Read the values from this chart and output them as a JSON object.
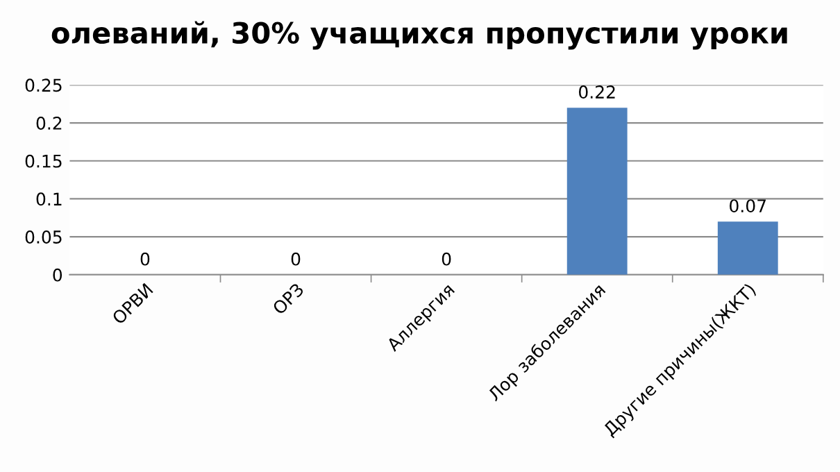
{
  "chart_data": {
    "type": "bar",
    "title": "олеваний, 30% учащихся пропустили уроки",
    "categories": [
      "ОРВИ",
      "ОРЗ",
      "Аллергия",
      "Лор заболевания",
      "Другие причины(ЖКТ)"
    ],
    "values": [
      0,
      0,
      0,
      0.22,
      0.07
    ],
    "color": "#4f81bd",
    "ylim": [
      0,
      0.25
    ],
    "yticks": [
      0,
      0.05,
      0.1,
      0.15,
      0.2,
      0.25
    ],
    "grid": "y",
    "data_labels": true
  }
}
